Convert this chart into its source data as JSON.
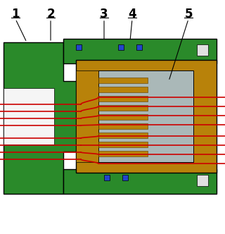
{
  "figsize": [
    3.2,
    3.32
  ],
  "dpi": 100,
  "bg_color": "#ffffff",
  "green": "#2a8a2a",
  "brown": "#b8820a",
  "gray": "#aab8b8",
  "red": "#cc0000",
  "blue": "#2244cc",
  "black": "#000000",
  "white": "#f5f5f5",
  "lgray": "#d0d8d8"
}
